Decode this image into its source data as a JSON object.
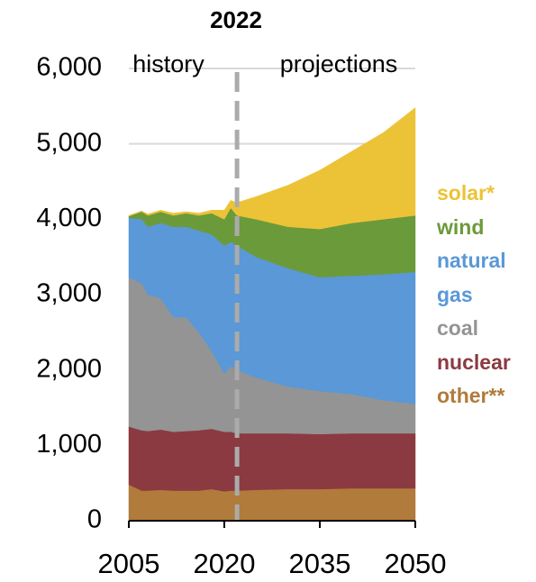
{
  "chart_data": {
    "type": "stacked_area",
    "divider_x": 2022,
    "annotations": [
      "history",
      "projections"
    ],
    "x": [
      2005,
      2007,
      2008,
      2010,
      2012,
      2014,
      2016,
      2018,
      2020,
      2021,
      2022,
      2025,
      2030,
      2035,
      2040,
      2045,
      2050
    ],
    "series": [
      {
        "name": "other**",
        "color": "#b17b3b",
        "values": [
          480,
          400,
          400,
          410,
          400,
          400,
          400,
          420,
          390,
          400,
          400,
          410,
          420,
          420,
          430,
          430,
          430
        ]
      },
      {
        "name": "nuclear",
        "color": "#8b3a41",
        "values": [
          770,
          800,
          790,
          800,
          780,
          790,
          800,
          800,
          790,
          780,
          760,
          750,
          740,
          730,
          730,
          730,
          730
        ]
      },
      {
        "name": "coal",
        "color": "#949494",
        "values": [
          1980,
          1950,
          1810,
          1740,
          1520,
          1510,
          1300,
          1030,
          770,
          870,
          840,
          740,
          620,
          570,
          520,
          440,
          390
        ]
      },
      {
        "name": "natural gas",
        "color": "#5a98d7",
        "values": [
          790,
          850,
          900,
          1000,
          1200,
          1200,
          1350,
          1550,
          1700,
          1650,
          1650,
          1600,
          1570,
          1510,
          1570,
          1670,
          1750
        ]
      },
      {
        "name": "wind",
        "color": "#6b9a3b",
        "values": [
          20,
          100,
          150,
          150,
          150,
          180,
          200,
          280,
          350,
          450,
          400,
          500,
          550,
          640,
          700,
          730,
          750
        ]
      },
      {
        "name": "solar*",
        "color": "#ecc337",
        "values": [
          10,
          10,
          20,
          20,
          30,
          20,
          30,
          40,
          120,
          100,
          170,
          300,
          550,
          780,
          950,
          1150,
          1430
        ]
      }
    ],
    "xlim": [
      2005,
      2050
    ],
    "xticks": [
      2005,
      2020,
      2035,
      2050
    ],
    "ylim": [
      0,
      6000
    ],
    "yticks": [
      0,
      {
        "value": 1000,
        "label": "1,000"
      },
      {
        "value": 2000,
        "label": "2,000"
      },
      {
        "value": 3000,
        "label": "3,000"
      },
      {
        "value": 4000,
        "label": "4,000"
      },
      {
        "value": 5000,
        "label": "5,000"
      },
      {
        "value": 6000,
        "label": "6,000"
      }
    ],
    "grid": true
  }
}
